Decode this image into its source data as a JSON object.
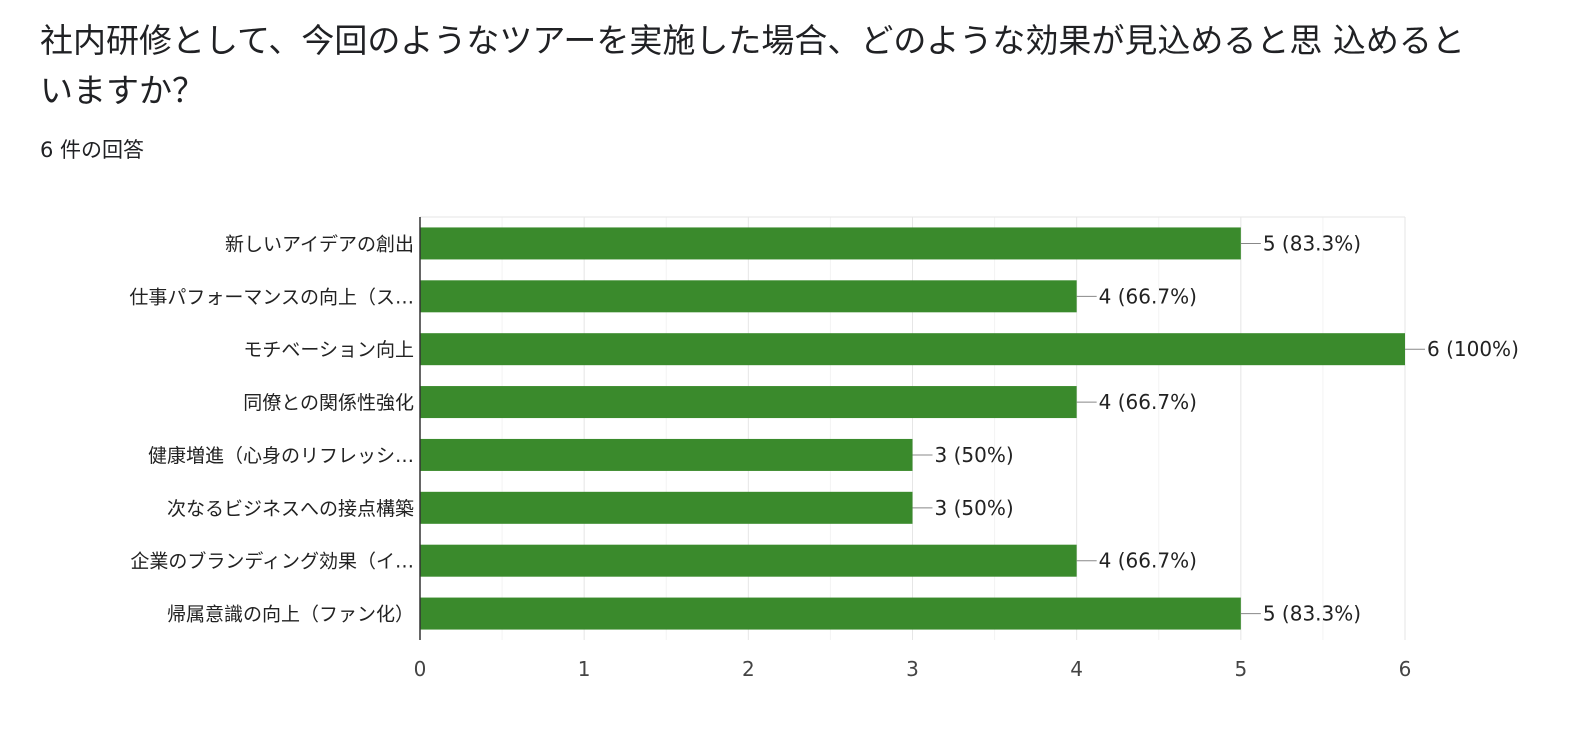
{
  "question": {
    "line1": "社内研修として、今回のようなツアーを実施した場合、どのような効果が見込めると思 込めると",
    "line2": "いますか？"
  },
  "response_count": "6 件の回答",
  "colors": {
    "bar": "#3a8a2c",
    "grid": "#e6e6e6",
    "axis": "#333333"
  },
  "chart_data": {
    "type": "bar",
    "orientation": "horizontal",
    "categories": [
      "新しいアイデアの創出",
      "仕事パフォーマンスの向上（ス…",
      "モチベーション向上",
      "同僚との関係性強化",
      "健康増進（心身のリフレッシ…",
      "次なるビジネスへの接点構築",
      "企業のブランディング効果（イ…",
      "帰属意識の向上（ファン化）"
    ],
    "values": [
      5,
      4,
      6,
      4,
      3,
      3,
      4,
      5
    ],
    "data_labels": [
      "5 (83.3%)",
      "4 (66.7%)",
      "6 (100%)",
      "4 (66.7%)",
      "3 (50%)",
      "3 (50%)",
      "4 (66.7%)",
      "5 (83.3%)"
    ],
    "xlim": [
      0,
      6
    ],
    "xticks": [
      "0",
      "1",
      "2",
      "3",
      "4",
      "5",
      "6"
    ],
    "grid": true
  }
}
